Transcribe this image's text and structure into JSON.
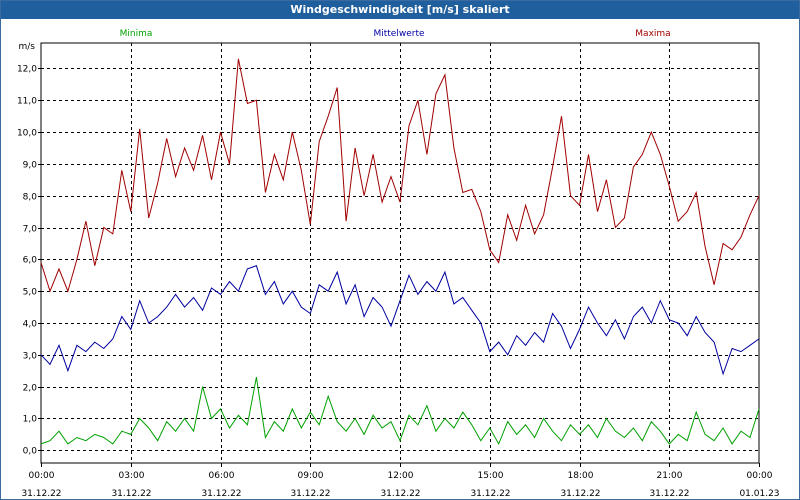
{
  "window": {
    "title": "Windgeschwindigkeit [m/s] skaliert"
  },
  "chart_data": {
    "type": "line",
    "title": "Windgeschwindigkeit [m/s] skaliert",
    "ylabel": "m/s",
    "ylim": [
      -0.4,
      12.8
    ],
    "yticks": [
      0.0,
      1.0,
      2.0,
      3.0,
      4.0,
      5.0,
      6.0,
      7.0,
      8.0,
      9.0,
      10.0,
      11.0,
      12.0
    ],
    "ytick_labels": [
      "0,0",
      "1,0",
      "2,0",
      "3,0",
      "4,0",
      "5,0",
      "6,0",
      "7,0",
      "8,0",
      "9,0",
      "10,0",
      "11,0",
      "12,0"
    ],
    "xlim_hours": [
      0,
      24
    ],
    "xticks": [
      {
        "h": 0,
        "time": "00:00",
        "date": "31.12.22"
      },
      {
        "h": 3,
        "time": "03:00",
        "date": "31.12.22"
      },
      {
        "h": 6,
        "time": "06:00",
        "date": "31.12.22"
      },
      {
        "h": 9,
        "time": "09:00",
        "date": "31.12.22"
      },
      {
        "h": 12,
        "time": "12:00",
        "date": "31.12.22"
      },
      {
        "h": 15,
        "time": "15:00",
        "date": "31.12.22"
      },
      {
        "h": 18,
        "time": "18:00",
        "date": "31.12.22"
      },
      {
        "h": 21,
        "time": "21:00",
        "date": "31.12.22"
      },
      {
        "h": 24,
        "time": "00:00",
        "date": "01.01.23"
      }
    ],
    "grid": true,
    "legend": "top",
    "series": [
      {
        "name": "Minima",
        "color": "#00a000",
        "points": [
          [
            0,
            0.2
          ],
          [
            0.3,
            0.3
          ],
          [
            0.6,
            0.6
          ],
          [
            0.9,
            0.2
          ],
          [
            1.2,
            0.4
          ],
          [
            1.5,
            0.3
          ],
          [
            1.8,
            0.5
          ],
          [
            2.1,
            0.4
          ],
          [
            2.4,
            0.2
          ],
          [
            2.7,
            0.6
          ],
          [
            3.0,
            0.5
          ],
          [
            3.3,
            1.0
          ],
          [
            3.6,
            0.7
          ],
          [
            3.9,
            0.3
          ],
          [
            4.2,
            0.9
          ],
          [
            4.5,
            0.6
          ],
          [
            4.8,
            1.0
          ],
          [
            5.1,
            0.6
          ],
          [
            5.4,
            2.0
          ],
          [
            5.7,
            1.0
          ],
          [
            6.0,
            1.3
          ],
          [
            6.3,
            0.7
          ],
          [
            6.6,
            1.1
          ],
          [
            6.9,
            0.8
          ],
          [
            7.2,
            2.3
          ],
          [
            7.5,
            0.4
          ],
          [
            7.8,
            0.9
          ],
          [
            8.1,
            0.6
          ],
          [
            8.4,
            1.3
          ],
          [
            8.7,
            0.7
          ],
          [
            9.0,
            1.2
          ],
          [
            9.3,
            0.8
          ],
          [
            9.6,
            1.7
          ],
          [
            9.9,
            0.9
          ],
          [
            10.2,
            0.6
          ],
          [
            10.5,
            1.0
          ],
          [
            10.8,
            0.5
          ],
          [
            11.1,
            1.1
          ],
          [
            11.4,
            0.7
          ],
          [
            11.7,
            0.9
          ],
          [
            12.0,
            0.3
          ],
          [
            12.3,
            1.1
          ],
          [
            12.6,
            0.8
          ],
          [
            12.9,
            1.4
          ],
          [
            13.2,
            0.6
          ],
          [
            13.5,
            1.0
          ],
          [
            13.8,
            0.7
          ],
          [
            14.1,
            1.2
          ],
          [
            14.4,
            0.8
          ],
          [
            14.7,
            0.3
          ],
          [
            15.0,
            0.7
          ],
          [
            15.3,
            0.2
          ],
          [
            15.6,
            0.9
          ],
          [
            15.9,
            0.5
          ],
          [
            16.2,
            0.8
          ],
          [
            16.5,
            0.4
          ],
          [
            16.8,
            1.0
          ],
          [
            17.1,
            0.6
          ],
          [
            17.4,
            0.3
          ],
          [
            17.7,
            0.8
          ],
          [
            18.0,
            0.5
          ],
          [
            18.3,
            0.8
          ],
          [
            18.6,
            0.4
          ],
          [
            18.9,
            1.0
          ],
          [
            19.2,
            0.6
          ],
          [
            19.5,
            0.4
          ],
          [
            19.8,
            0.7
          ],
          [
            20.1,
            0.3
          ],
          [
            20.4,
            0.9
          ],
          [
            20.7,
            0.6
          ],
          [
            21.0,
            0.2
          ],
          [
            21.3,
            0.5
          ],
          [
            21.6,
            0.3
          ],
          [
            21.9,
            1.2
          ],
          [
            22.2,
            0.5
          ],
          [
            22.5,
            0.3
          ],
          [
            22.8,
            0.7
          ],
          [
            23.1,
            0.2
          ],
          [
            23.4,
            0.6
          ],
          [
            23.7,
            0.4
          ],
          [
            24.0,
            1.3
          ]
        ]
      },
      {
        "name": "Mittelwerte",
        "color": "#0000a0",
        "points": [
          [
            0,
            3.0
          ],
          [
            0.3,
            2.7
          ],
          [
            0.6,
            3.3
          ],
          [
            0.9,
            2.5
          ],
          [
            1.2,
            3.3
          ],
          [
            1.5,
            3.1
          ],
          [
            1.8,
            3.4
          ],
          [
            2.1,
            3.2
          ],
          [
            2.4,
            3.5
          ],
          [
            2.7,
            4.2
          ],
          [
            3.0,
            3.8
          ],
          [
            3.3,
            4.7
          ],
          [
            3.6,
            4.0
          ],
          [
            3.9,
            4.2
          ],
          [
            4.2,
            4.5
          ],
          [
            4.5,
            4.9
          ],
          [
            4.8,
            4.5
          ],
          [
            5.1,
            4.8
          ],
          [
            5.4,
            4.4
          ],
          [
            5.7,
            5.1
          ],
          [
            6.0,
            4.9
          ],
          [
            6.3,
            5.3
          ],
          [
            6.6,
            5.0
          ],
          [
            6.9,
            5.7
          ],
          [
            7.2,
            5.8
          ],
          [
            7.5,
            4.9
          ],
          [
            7.8,
            5.3
          ],
          [
            8.1,
            4.6
          ],
          [
            8.4,
            5.0
          ],
          [
            8.7,
            4.5
          ],
          [
            9.0,
            4.3
          ],
          [
            9.3,
            5.2
          ],
          [
            9.6,
            5.0
          ],
          [
            9.9,
            5.6
          ],
          [
            10.2,
            4.6
          ],
          [
            10.5,
            5.2
          ],
          [
            10.8,
            4.2
          ],
          [
            11.1,
            4.8
          ],
          [
            11.4,
            4.5
          ],
          [
            11.7,
            3.9
          ],
          [
            12.0,
            4.7
          ],
          [
            12.3,
            5.5
          ],
          [
            12.6,
            4.9
          ],
          [
            12.9,
            5.3
          ],
          [
            13.2,
            5.0
          ],
          [
            13.5,
            5.6
          ],
          [
            13.8,
            4.6
          ],
          [
            14.1,
            4.8
          ],
          [
            14.4,
            4.4
          ],
          [
            14.7,
            4.0
          ],
          [
            15.0,
            3.1
          ],
          [
            15.3,
            3.4
          ],
          [
            15.6,
            3.0
          ],
          [
            15.9,
            3.6
          ],
          [
            16.2,
            3.3
          ],
          [
            16.5,
            3.7
          ],
          [
            16.8,
            3.4
          ],
          [
            17.1,
            4.3
          ],
          [
            17.4,
            3.9
          ],
          [
            17.7,
            3.2
          ],
          [
            18.0,
            3.8
          ],
          [
            18.3,
            4.5
          ],
          [
            18.6,
            4.0
          ],
          [
            18.9,
            3.6
          ],
          [
            19.2,
            4.1
          ],
          [
            19.5,
            3.5
          ],
          [
            19.8,
            4.2
          ],
          [
            20.1,
            4.5
          ],
          [
            20.4,
            4.0
          ],
          [
            20.7,
            4.7
          ],
          [
            21.0,
            4.1
          ],
          [
            21.3,
            4.0
          ],
          [
            21.6,
            3.6
          ],
          [
            21.9,
            4.2
          ],
          [
            22.2,
            3.7
          ],
          [
            22.5,
            3.4
          ],
          [
            22.8,
            2.4
          ],
          [
            23.1,
            3.2
          ],
          [
            23.4,
            3.1
          ],
          [
            23.7,
            3.3
          ],
          [
            24.0,
            3.5
          ]
        ]
      },
      {
        "name": "Maxima",
        "color": "#a00000",
        "points": [
          [
            0,
            5.9
          ],
          [
            0.3,
            5.0
          ],
          [
            0.6,
            5.7
          ],
          [
            0.9,
            5.0
          ],
          [
            1.2,
            6.0
          ],
          [
            1.5,
            7.2
          ],
          [
            1.8,
            5.8
          ],
          [
            2.1,
            7.0
          ],
          [
            2.4,
            6.8
          ],
          [
            2.7,
            8.8
          ],
          [
            3.0,
            7.5
          ],
          [
            3.3,
            10.1
          ],
          [
            3.6,
            7.3
          ],
          [
            3.9,
            8.4
          ],
          [
            4.2,
            9.8
          ],
          [
            4.5,
            8.6
          ],
          [
            4.8,
            9.5
          ],
          [
            5.1,
            8.8
          ],
          [
            5.4,
            9.9
          ],
          [
            5.7,
            8.5
          ],
          [
            6.0,
            10.0
          ],
          [
            6.3,
            9.0
          ],
          [
            6.6,
            12.3
          ],
          [
            6.9,
            10.9
          ],
          [
            7.2,
            11.0
          ],
          [
            7.5,
            8.1
          ],
          [
            7.8,
            9.3
          ],
          [
            8.1,
            8.5
          ],
          [
            8.4,
            10.0
          ],
          [
            8.7,
            8.8
          ],
          [
            9.0,
            7.1
          ],
          [
            9.3,
            9.7
          ],
          [
            9.6,
            10.5
          ],
          [
            9.9,
            11.4
          ],
          [
            10.2,
            7.2
          ],
          [
            10.5,
            9.5
          ],
          [
            10.8,
            8.0
          ],
          [
            11.1,
            9.3
          ],
          [
            11.4,
            7.8
          ],
          [
            11.7,
            8.6
          ],
          [
            12.0,
            7.8
          ],
          [
            12.3,
            10.2
          ],
          [
            12.6,
            11.0
          ],
          [
            12.9,
            9.3
          ],
          [
            13.2,
            11.2
          ],
          [
            13.5,
            11.8
          ],
          [
            13.8,
            9.5
          ],
          [
            14.1,
            8.1
          ],
          [
            14.4,
            8.2
          ],
          [
            14.7,
            7.5
          ],
          [
            15.0,
            6.3
          ],
          [
            15.3,
            5.9
          ],
          [
            15.6,
            7.4
          ],
          [
            15.9,
            6.6
          ],
          [
            16.2,
            7.7
          ],
          [
            16.5,
            6.8
          ],
          [
            16.8,
            7.4
          ],
          [
            17.1,
            8.9
          ],
          [
            17.4,
            10.5
          ],
          [
            17.7,
            8.0
          ],
          [
            18.0,
            7.7
          ],
          [
            18.3,
            9.3
          ],
          [
            18.6,
            7.5
          ],
          [
            18.9,
            8.5
          ],
          [
            19.2,
            7.0
          ],
          [
            19.5,
            7.3
          ],
          [
            19.8,
            8.9
          ],
          [
            20.1,
            9.3
          ],
          [
            20.4,
            10.0
          ],
          [
            20.7,
            9.3
          ],
          [
            21.0,
            8.3
          ],
          [
            21.3,
            7.2
          ],
          [
            21.6,
            7.5
          ],
          [
            21.9,
            8.1
          ],
          [
            22.2,
            6.4
          ],
          [
            22.5,
            5.2
          ],
          [
            22.8,
            6.5
          ],
          [
            23.1,
            6.3
          ],
          [
            23.4,
            6.7
          ],
          [
            23.7,
            7.4
          ],
          [
            24.0,
            8.0
          ]
        ]
      }
    ]
  }
}
